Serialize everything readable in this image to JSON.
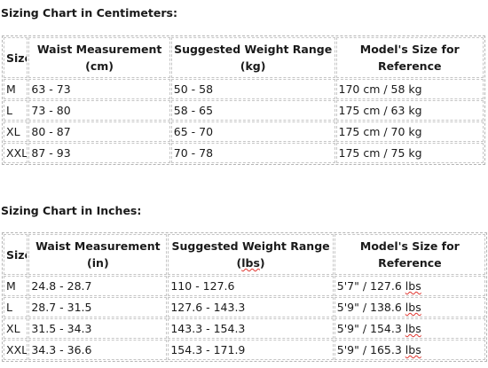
{
  "centimeters": {
    "heading": "Sizing Chart in Centimeters:",
    "headers": [
      "Size",
      "Waist Measurement (cm)",
      "Suggested Weight Range (kg)",
      "Model's Size for Reference"
    ],
    "rows": [
      [
        "M",
        "63 - 73",
        "50 - 58",
        "170 cm / 58 kg"
      ],
      [
        "L",
        "73 - 80",
        "58 - 65",
        "175 cm / 63 kg"
      ],
      [
        "XL",
        "80 - 87",
        "65 - 70",
        "175 cm / 70 kg"
      ],
      [
        "XXL",
        "87 - 93",
        "70 - 78",
        "175 cm / 75 kg"
      ]
    ]
  },
  "inches": {
    "heading": "Sizing Chart in Inches:",
    "headers": [
      "Size",
      "Waist Measurement (in)",
      "Suggested Weight Range (lbs)",
      "Model's Size for Reference"
    ],
    "rows": [
      [
        "M",
        "24.8 - 28.7",
        "110 - 127.6",
        "5'7\" / 127.6 lbs"
      ],
      [
        "L",
        "28.7 - 31.5",
        "127.6 - 143.3",
        "5'9\" / 138.6 lbs"
      ],
      [
        "XL",
        "31.5 - 34.3",
        "143.3 - 154.3",
        "5'9\" / 154.3 lbs"
      ],
      [
        "XXL",
        "34.3 - 36.6",
        "154.3 - 171.9",
        "5'9\" / 165.3 lbs"
      ]
    ]
  }
}
